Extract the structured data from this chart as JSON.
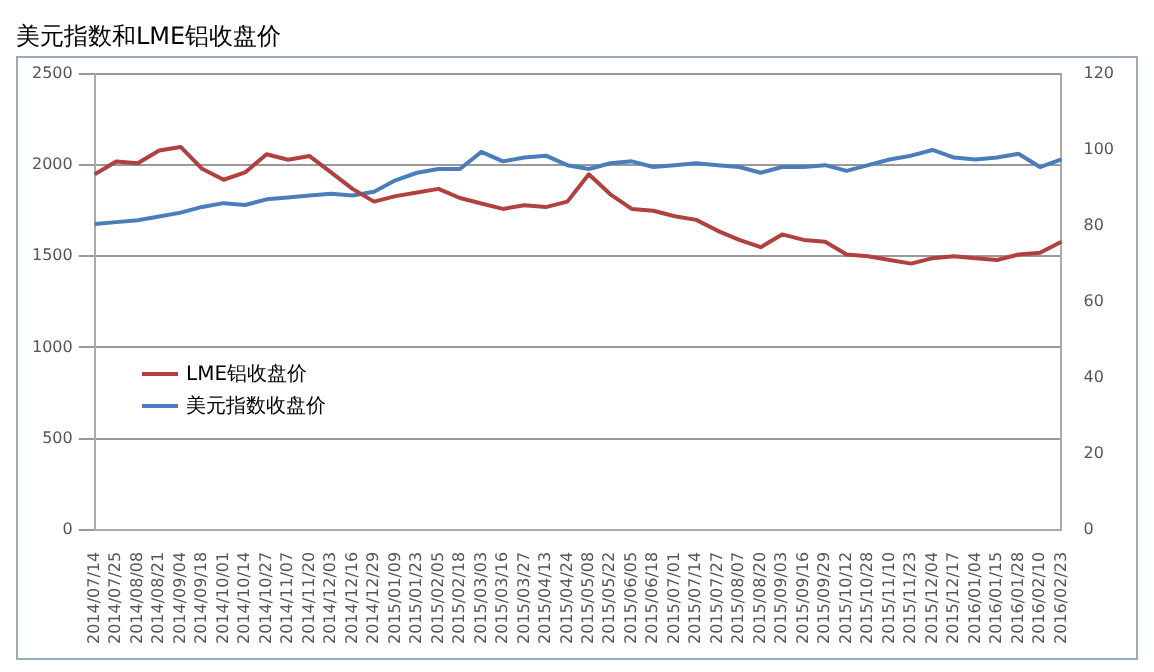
{
  "chart_data": {
    "type": "line",
    "title": "美元指数和LME铝收盘价",
    "categories": [
      "2014/07/14",
      "2014/07/25",
      "2014/08/08",
      "2014/08/21",
      "2014/09/04",
      "2014/09/18",
      "2014/10/01",
      "2014/10/14",
      "2014/10/27",
      "2014/11/07",
      "2014/11/20",
      "2014/12/03",
      "2014/12/16",
      "2014/12/29",
      "2015/01/09",
      "2015/01/23",
      "2015/02/05",
      "2015/02/18",
      "2015/03/03",
      "2015/03/16",
      "2015/03/27",
      "2015/04/13",
      "2015/04/24",
      "2015/05/08",
      "2015/05/22",
      "2015/06/05",
      "2015/06/18",
      "2015/07/01",
      "2015/07/14",
      "2015/07/27",
      "2015/08/07",
      "2015/08/20",
      "2015/09/03",
      "2015/09/16",
      "2015/09/29",
      "2015/10/12",
      "2015/10/28",
      "2015/11/10",
      "2015/11/23",
      "2015/12/04",
      "2015/12/17",
      "2016/01/04",
      "2016/01/15",
      "2016/01/28",
      "2016/02/10",
      "2016/02/23"
    ],
    "series": [
      {
        "name": "LME铝收盘价",
        "color": "#b0413e",
        "values": [
          1950,
          2020,
          2010,
          2080,
          2100,
          1980,
          1920,
          1960,
          2060,
          2030,
          2050,
          1960,
          1870,
          1800,
          1830,
          1850,
          1870,
          1820,
          1790,
          1760,
          1780,
          1770,
          1800,
          1950,
          1840,
          1760,
          1750,
          1720,
          1700,
          1640,
          1590,
          1550,
          1620,
          1590,
          1580,
          1510,
          1500,
          1480,
          1460,
          1490,
          1500,
          1490,
          1480,
          1510,
          1520,
          1580
        ]
      },
      {
        "name": "美元指数收盘价",
        "color": "#4a7ebb",
        "axis": "y2",
        "values": [
          80.5,
          81,
          81.5,
          82.5,
          83.5,
          85,
          86,
          85.5,
          87,
          87.5,
          88,
          88.5,
          88,
          89,
          92,
          94,
          95,
          95,
          99.5,
          97,
          98,
          98.5,
          96,
          95,
          96.5,
          97,
          95.5,
          96,
          96.5,
          96,
          95.5,
          94,
          95.5,
          95.5,
          96,
          94.5,
          96,
          97.5,
          98.5,
          100,
          98,
          97.5,
          98,
          99,
          95.5,
          97.5
        ]
      }
    ],
    "ylim": [
      0,
      2500
    ],
    "yticks": [
      0,
      500,
      1000,
      1500,
      2000,
      2500
    ],
    "y2lim": [
      0,
      120
    ],
    "y2ticks": [
      0,
      20,
      40,
      60,
      80,
      100,
      120
    ],
    "grid": "y",
    "legend": "left",
    "marker": "none"
  }
}
